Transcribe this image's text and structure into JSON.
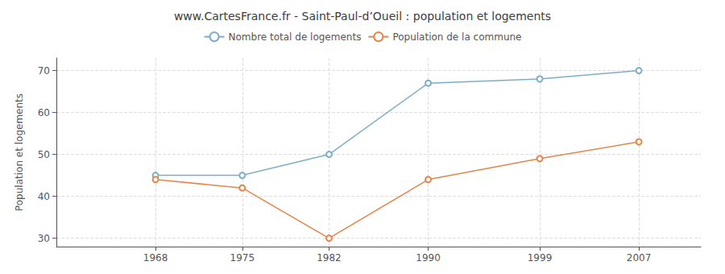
{
  "chart_data": {
    "type": "line",
    "title": "www.CartesFrance.fr - Saint-Paul-d’Oueil : population et logements",
    "ylabel": "Population et logements",
    "x": [
      1968,
      1975,
      1982,
      1990,
      1999,
      2007
    ],
    "series": [
      {
        "name": "Nombre total de logements",
        "color": "#7daec8",
        "marker": "circle",
        "values": [
          45,
          45,
          50,
          67,
          68,
          70
        ]
      },
      {
        "name": "Population de la commune",
        "color": "#e8844a",
        "marker": "circle",
        "values": [
          44,
          42,
          30,
          44,
          49,
          53
        ]
      }
    ],
    "xlim": [
      1960,
      2012
    ],
    "xticks": [
      1968,
      1975,
      1982,
      1990,
      1999,
      2007
    ],
    "ylim": [
      28,
      73
    ],
    "yticks": [
      30,
      40,
      50,
      60,
      70
    ],
    "grid": true,
    "legend": "top"
  }
}
